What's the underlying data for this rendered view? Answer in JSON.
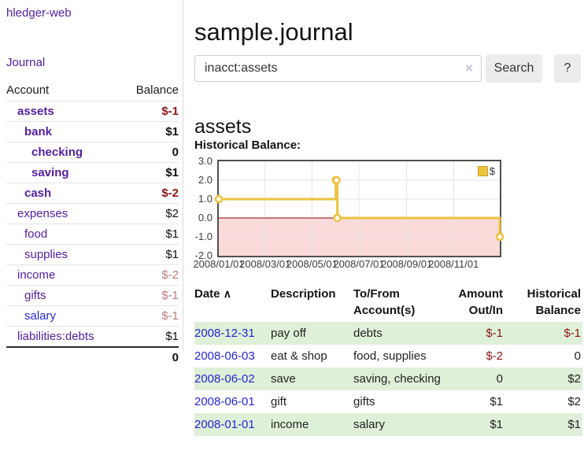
{
  "app": {
    "brand": "hledger-web"
  },
  "sidebar": {
    "journal_link": "Journal",
    "headers": {
      "account": "Account",
      "balance": "Balance"
    },
    "accounts": [
      {
        "name": "assets",
        "level": 1,
        "selected": true,
        "balance": "$-1",
        "negative": true,
        "link_color": "purple"
      },
      {
        "name": "bank",
        "level": 2,
        "selected": true,
        "balance": "$1",
        "negative": false,
        "link_color": "purple"
      },
      {
        "name": "checking",
        "level": 3,
        "selected": true,
        "balance": "0",
        "negative": false,
        "link_color": "purple"
      },
      {
        "name": "saving",
        "level": 3,
        "selected": true,
        "balance": "$1",
        "negative": false,
        "link_color": "purple"
      },
      {
        "name": "cash",
        "level": 2,
        "selected": true,
        "balance": "$-2",
        "negative": true,
        "link_color": "purple"
      },
      {
        "name": "expenses",
        "level": 1,
        "selected": false,
        "balance": "$2",
        "negative": false,
        "link_color": "purple"
      },
      {
        "name": "food",
        "level": 2,
        "selected": false,
        "balance": "$1",
        "negative": false,
        "link_color": "purple"
      },
      {
        "name": "supplies",
        "level": 2,
        "selected": false,
        "balance": "$1",
        "negative": false,
        "link_color": "purple"
      },
      {
        "name": "income",
        "level": 1,
        "selected": false,
        "balance": "$-2",
        "negative": true,
        "link_color": "purple"
      },
      {
        "name": "gifts",
        "level": 2,
        "selected": false,
        "balance": "$-1",
        "negative": true,
        "link_color": "purple"
      },
      {
        "name": "salary",
        "level": 2,
        "selected": false,
        "balance": "$-1",
        "negative": true,
        "link_color": "blue"
      },
      {
        "name": "liabilities:debts",
        "level": 1,
        "selected": false,
        "balance": "$1",
        "negative": false,
        "link_color": "purple"
      }
    ],
    "total": "0"
  },
  "header": {
    "title": "sample.journal"
  },
  "search": {
    "query": "inacct:assets",
    "clear_icon": "×",
    "button": "Search",
    "help_button": "?"
  },
  "account_page": {
    "heading": "assets",
    "chart_title": "Historical Balance:"
  },
  "chart_data": {
    "type": "line",
    "step": true,
    "title": "Historical Balance:",
    "series_color": "#edc240",
    "negative_fill": "#fbdada",
    "zero_line_color": "#8b0000",
    "grid_color": "#e4e4e4",
    "legend": [
      {
        "label": "$",
        "color": "#edc240"
      }
    ],
    "x_start": "2008-01-01",
    "x_end": "2008-12-31",
    "ylim": [
      -2,
      3
    ],
    "y_ticks": [
      "3.0",
      "2.0",
      "1.0",
      "0.0",
      "-1.0",
      "-2.0"
    ],
    "x_ticks": [
      "2008/01/01",
      "2008/03/01",
      "2008/05/01",
      "2008/07/01",
      "2008/09/01",
      "2008/11/01"
    ],
    "points": [
      {
        "date": "2008-01-01",
        "value": 1
      },
      {
        "date": "2008-06-01",
        "value": 2
      },
      {
        "date": "2008-06-02",
        "value": 2
      },
      {
        "date": "2008-06-03",
        "value": 0
      },
      {
        "date": "2008-12-31",
        "value": -1
      }
    ]
  },
  "register": {
    "headers": {
      "date": "Date",
      "description": "Description",
      "accounts": "To/From Account(s)",
      "amount": "Amount Out/In",
      "balance": "Historical Balance"
    },
    "sort_icon": "∧",
    "rows": [
      {
        "date": "2008-12-31",
        "description": "pay off",
        "accounts": "debts",
        "amount": "$-1",
        "amount_negative": true,
        "balance": "$-1",
        "balance_negative": true
      },
      {
        "date": "2008-06-03",
        "description": "eat & shop",
        "accounts": "food, supplies",
        "amount": "$-2",
        "amount_negative": true,
        "balance": "0",
        "balance_negative": false
      },
      {
        "date": "2008-06-02",
        "description": "save",
        "accounts": "saving, checking",
        "amount": "0",
        "amount_negative": false,
        "balance": "$2",
        "balance_negative": false
      },
      {
        "date": "2008-06-01",
        "description": "gift",
        "accounts": "gifts",
        "amount": "$1",
        "amount_negative": false,
        "balance": "$2",
        "balance_negative": false
      },
      {
        "date": "2008-01-01",
        "description": "income",
        "accounts": "salary",
        "amount": "$1",
        "amount_negative": false,
        "balance": "$1",
        "balance_negative": false
      }
    ]
  },
  "colors": {
    "accent_purple": "#54219c",
    "link_blue": "#2727cf",
    "negative_strong": "#8c1616",
    "negative_muted": "#bd7d7d",
    "row_stripe_green": "#dff0d8"
  }
}
